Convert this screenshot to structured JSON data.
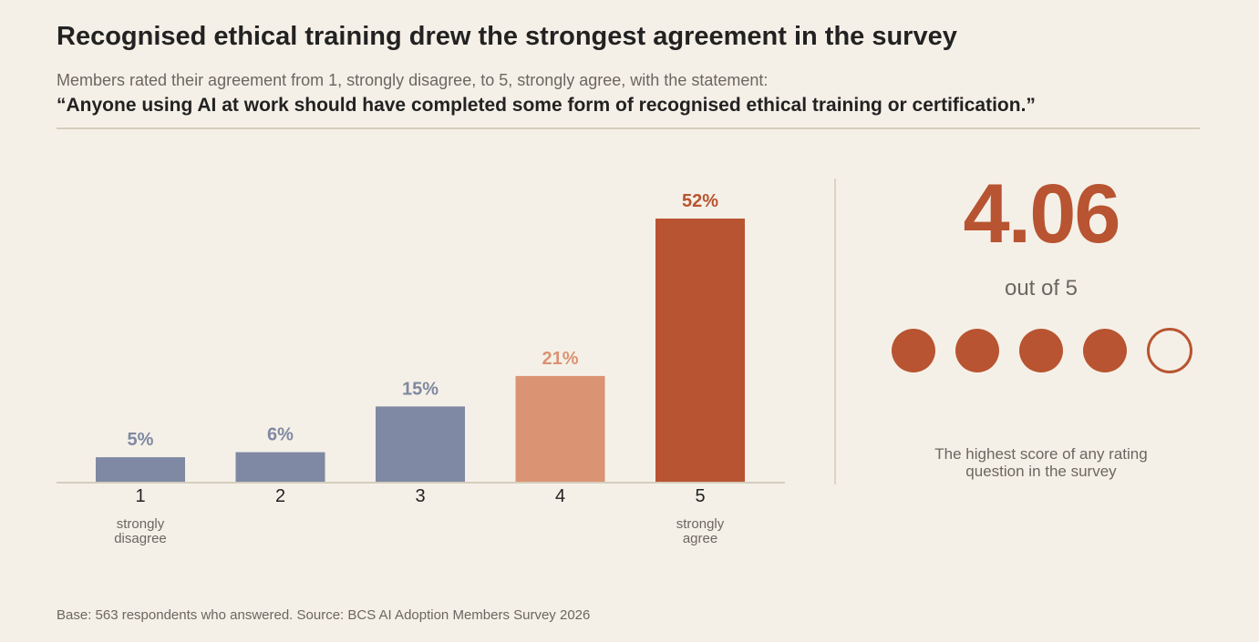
{
  "header": {
    "title": "Recognised ethical training drew the strongest agreement in the survey",
    "subtitle": "Members rated their agreement from 1, strongly disagree, to 5, strongly agree, with the statement:",
    "statement": "“Anyone using AI at work should have completed some form of recognised ethical training or certification.”"
  },
  "chart_data": {
    "type": "bar",
    "categories": [
      "1",
      "2",
      "3",
      "4",
      "5"
    ],
    "values": [
      5,
      6,
      15,
      21,
      52
    ],
    "data_labels": [
      "5%",
      "6%",
      "15%",
      "21%",
      "52%"
    ],
    "category_notes": [
      "strongly\ndisagree",
      "",
      "",
      "",
      "strongly\nagree"
    ],
    "title": "",
    "xlabel": "",
    "ylabel": "",
    "ylim": [
      0,
      52
    ],
    "grid": false,
    "colors": [
      "#7f89a3",
      "#7f89a3",
      "#7f89a3",
      "#da9373",
      "#b85431"
    ],
    "label_colors": [
      "#7f89a3",
      "#7f89a3",
      "#7f89a3",
      "#da9373",
      "#b85431"
    ]
  },
  "summary": {
    "score": "4.06",
    "out_of": "out of 5",
    "rating_value": 4,
    "rating_max": 5,
    "note": "The highest score of any rating question in the survey",
    "accent_color": "#b85431"
  },
  "footer": {
    "source": "Base: 563 respondents who answered. Source: BCS AI Adoption Members Survey 2026"
  }
}
